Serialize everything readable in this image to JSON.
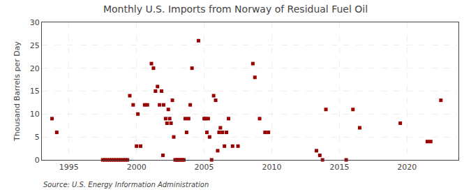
{
  "chart_data": {
    "type": "scatter",
    "title": "Monthly U.S. Imports from Norway of Residual Fuel Oil",
    "ylabel": "Thousand Barrels per Day",
    "source": "Source: U.S. Energy Information Administration",
    "color": "#990000",
    "marker": "square",
    "grid": true,
    "xlim": [
      1993.0,
      2023.8
    ],
    "xticks": [
      1995,
      2000,
      2005,
      2010,
      2015,
      2020
    ],
    "ylim": [
      0,
      30
    ],
    "yticks": [
      0,
      5,
      10,
      15,
      20,
      25,
      30
    ],
    "x": [
      1993.75,
      1994.1,
      1997.5,
      1997.67,
      1997.83,
      1998.0,
      1998.17,
      1998.33,
      1998.5,
      1998.67,
      1998.83,
      1999.0,
      1999.17,
      1999.33,
      1999.5,
      1999.75,
      2000.0,
      2000.1,
      2000.3,
      2000.6,
      2000.8,
      2001.1,
      2001.25,
      2001.4,
      2001.55,
      2001.7,
      2001.85,
      2001.95,
      2002.0,
      2002.15,
      2002.25,
      2002.35,
      2002.45,
      2002.55,
      2002.65,
      2002.75,
      2002.85,
      2002.95,
      2003.05,
      2003.17,
      2003.3,
      2003.4,
      2003.5,
      2003.6,
      2003.7,
      2003.85,
      2003.97,
      2004.1,
      2004.58,
      2005.0,
      2005.1,
      2005.2,
      2005.3,
      2005.4,
      2005.55,
      2005.7,
      2005.85,
      2006.0,
      2006.1,
      2006.2,
      2006.35,
      2006.5,
      2006.65,
      2006.8,
      2007.1,
      2007.5,
      2008.6,
      2008.75,
      2009.1,
      2009.5,
      2009.75,
      2013.3,
      2013.55,
      2013.75,
      2014.0,
      2015.5,
      2016.0,
      2016.5,
      2019.5,
      2021.5,
      2021.75,
      2022.5
    ],
    "values": [
      9,
      6,
      0,
      0,
      0,
      0,
      0,
      0,
      0,
      0,
      0,
      0,
      0,
      0,
      14,
      12,
      3,
      10,
      3,
      12,
      12,
      21,
      20,
      15,
      16,
      12,
      15,
      1,
      12,
      9,
      8,
      11,
      9,
      8,
      13,
      5,
      0,
      0,
      0,
      0,
      0,
      0,
      0,
      9,
      6,
      9,
      12,
      20,
      26,
      9,
      9,
      6,
      9,
      5,
      0,
      14,
      13,
      2,
      6,
      7,
      6,
      3,
      6,
      9,
      3,
      3,
      21,
      18,
      9,
      6,
      6,
      2,
      1,
      0,
      11,
      0,
      11,
      7,
      8,
      4,
      4,
      13
    ]
  }
}
